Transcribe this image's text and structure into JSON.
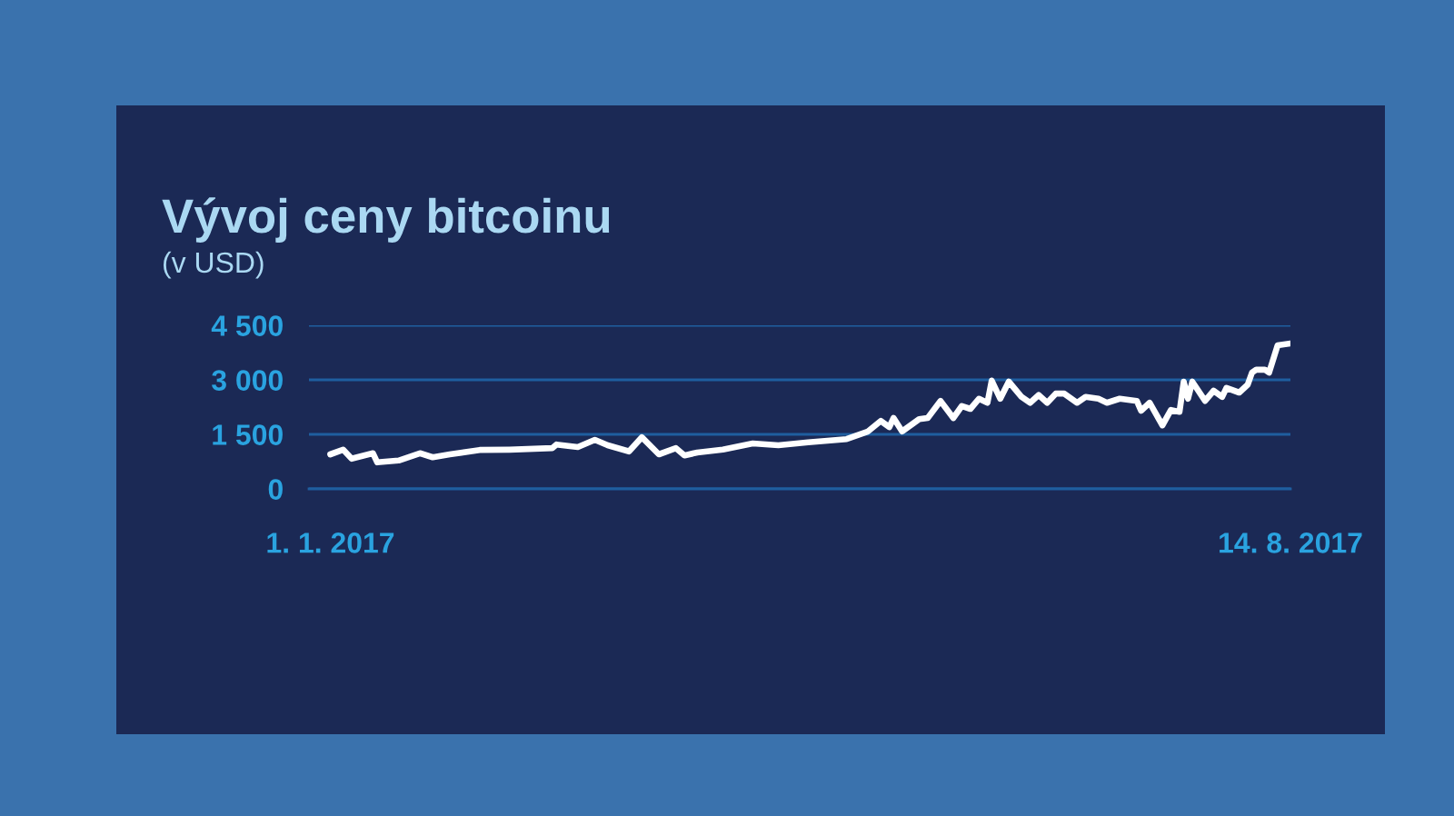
{
  "chart_data": {
    "type": "line",
    "title": "Vývoj ceny bitcoinu",
    "subtitle": "(v USD)",
    "x": [
      "2017-01-01",
      "2017-01-04",
      "2017-01-06",
      "2017-01-11",
      "2017-01-12",
      "2017-01-17",
      "2017-01-22",
      "2017-01-25",
      "2017-01-29",
      "2017-02-05",
      "2017-02-12",
      "2017-02-22",
      "2017-02-23",
      "2017-02-28",
      "2017-03-04",
      "2017-03-07",
      "2017-03-12",
      "2017-03-15",
      "2017-03-19",
      "2017-03-23",
      "2017-03-25",
      "2017-03-28",
      "2017-04-03",
      "2017-04-10",
      "2017-04-16",
      "2017-04-23",
      "2017-05-02",
      "2017-05-07",
      "2017-05-10",
      "2017-05-12",
      "2017-05-13",
      "2017-05-15",
      "2017-05-19",
      "2017-05-21",
      "2017-05-24",
      "2017-05-27",
      "2017-05-29",
      "2017-05-31",
      "2017-06-02",
      "2017-06-04",
      "2017-06-05",
      "2017-06-07",
      "2017-06-09",
      "2017-06-12",
      "2017-06-14",
      "2017-06-16",
      "2017-06-18",
      "2017-06-20",
      "2017-06-22",
      "2017-06-25",
      "2017-06-27",
      "2017-06-30",
      "2017-07-02",
      "2017-07-05",
      "2017-07-09",
      "2017-07-10",
      "2017-07-12",
      "2017-07-15",
      "2017-07-17",
      "2017-07-19",
      "2017-07-20",
      "2017-07-21",
      "2017-07-22",
      "2017-07-25",
      "2017-07-27",
      "2017-07-29",
      "2017-07-30",
      "2017-08-02",
      "2017-08-04",
      "2017-08-05",
      "2017-08-06",
      "2017-08-08",
      "2017-08-09",
      "2017-08-11",
      "2017-08-14"
    ],
    "series": [
      {
        "color": "#ffffff",
        "values": [
          950,
          1080,
          830,
          980,
          730,
          780,
          980,
          870,
          950,
          1070,
          1080,
          1120,
          1220,
          1150,
          1350,
          1200,
          1030,
          1420,
          950,
          1120,
          920,
          1000,
          1080,
          1250,
          1200,
          1280,
          1370,
          1580,
          1870,
          1700,
          1950,
          1580,
          1920,
          1950,
          2420,
          1950,
          2280,
          2200,
          2480,
          2370,
          2980,
          2480,
          2950,
          2530,
          2370,
          2580,
          2370,
          2620,
          2620,
          2370,
          2530,
          2480,
          2370,
          2480,
          2420,
          2150,
          2370,
          1750,
          2170,
          2120,
          2950,
          2480,
          2950,
          2420,
          2700,
          2530,
          2780,
          2650,
          2870,
          3200,
          3280,
          3280,
          3200,
          3950,
          4000
        ]
      }
    ],
    "xlim": [
      "2016-12-27",
      "2017-08-14"
    ],
    "xticks": [
      {
        "value": "2017-01-01",
        "label": "1. 1. 2017"
      },
      {
        "value": "2017-08-14",
        "label": "14. 8. 2017"
      }
    ],
    "ylim": [
      0,
      4500
    ],
    "yticks": [
      0,
      {
        "value": 1500,
        "label": "1 500"
      },
      {
        "value": 3000,
        "label": "3 000"
      },
      {
        "value": 4500,
        "label": "4 500"
      }
    ],
    "grid": "y"
  }
}
